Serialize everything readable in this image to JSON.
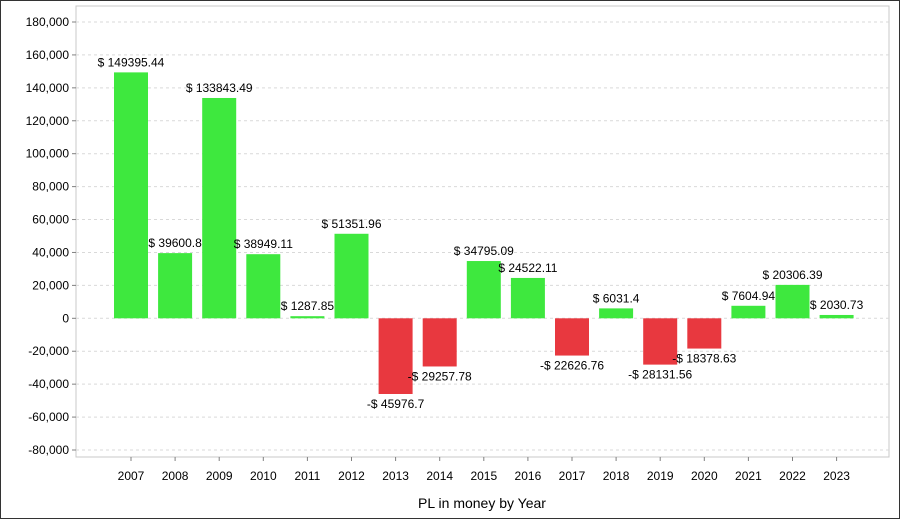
{
  "chart_data": {
    "type": "bar",
    "title": "",
    "xlabel": "PL in money by Year",
    "ylabel": "",
    "ylim": [
      -80000,
      180000
    ],
    "yticks": [
      180000,
      160000,
      140000,
      120000,
      100000,
      80000,
      60000,
      40000,
      20000,
      0,
      -20000,
      -40000,
      -60000,
      -80000
    ],
    "ytick_labels": [
      "180,000",
      "160,000",
      "140,000",
      "120,000",
      "100,000",
      "80,000",
      "60,000",
      "40,000",
      "20,000",
      "0",
      "-20,000",
      "-40,000",
      "-60,000",
      "-80,000"
    ],
    "grid": true,
    "categories": [
      "2007",
      "2008",
      "2009",
      "2010",
      "2011",
      "2012",
      "2013",
      "2014",
      "2015",
      "2016",
      "2017",
      "2018",
      "2019",
      "2020",
      "2021",
      "2022",
      "2023"
    ],
    "values": [
      149395.44,
      39600.8,
      133843.49,
      38949.11,
      1287.85,
      51351.96,
      -45976.7,
      -29257.78,
      34795.09,
      24522.11,
      -22626.76,
      6031.4,
      -28131.56,
      -18378.63,
      7604.94,
      20306.39,
      2030.73
    ],
    "data_labels": [
      "$ 149395.44",
      "$ 39600.8",
      "$ 133843.49",
      "$ 38949.11",
      "$ 1287.85",
      "$ 51351.96",
      "-$ 45976.7",
      "-$ 29257.78",
      "$ 34795.09",
      "$ 24522.11",
      "-$ 22626.76",
      "$ 6031.4",
      "-$ 28131.56",
      "-$ 18378.63",
      "$ 7604.94",
      "$ 20306.39",
      "$ 2030.73"
    ],
    "colors": {
      "positive": "#3ee83e",
      "negative": "#e8383f"
    }
  }
}
